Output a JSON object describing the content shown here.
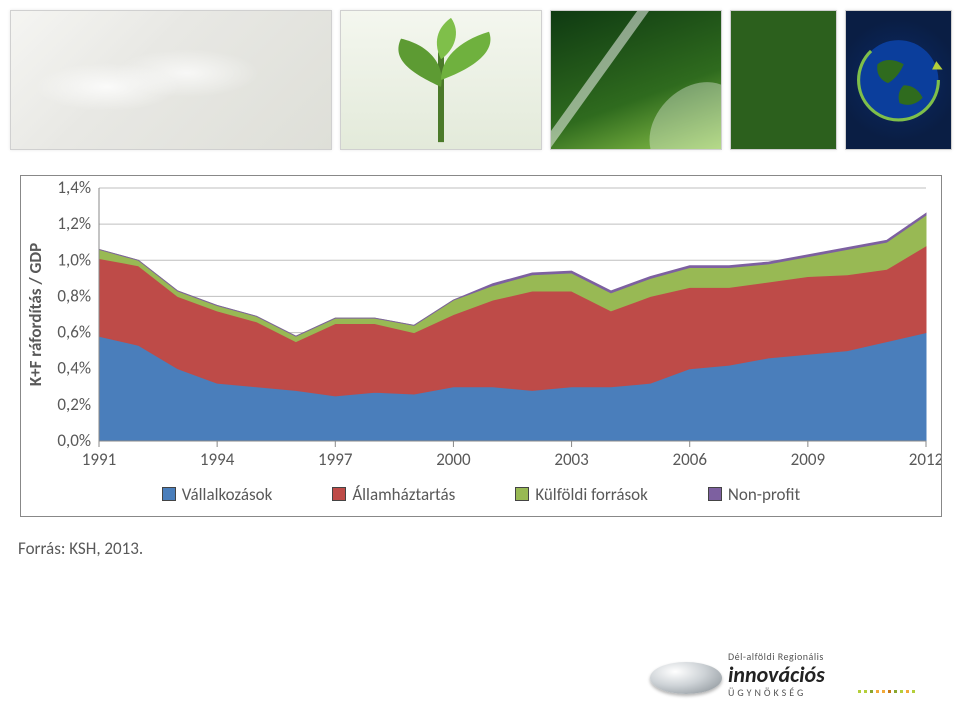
{
  "header": {
    "panels": [
      "dna-helix",
      "plant-sprout",
      "leaf-macro",
      "green-square",
      "earth-globe"
    ]
  },
  "chart": {
    "type": "stacked-area",
    "y_axis_label": "K+F ráfordítás / GDP",
    "y_ticks": [
      "0,0%",
      "0,2%",
      "0,4%",
      "0,6%",
      "0,8%",
      "1,0%",
      "1,2%",
      "1,4%"
    ],
    "y_tick_values": [
      0.0,
      0.2,
      0.4,
      0.6,
      0.8,
      1.0,
      1.2,
      1.4
    ],
    "ylim": [
      0.0,
      1.4
    ],
    "x_tick_labels": [
      "1991",
      "1994",
      "1997",
      "2000",
      "2003",
      "2006",
      "2009",
      "2012"
    ],
    "x_tick_years": [
      1991,
      1994,
      1997,
      2000,
      2003,
      2006,
      2009,
      2012
    ],
    "years": [
      1991,
      1992,
      1993,
      1994,
      1995,
      1996,
      1997,
      1998,
      1999,
      2000,
      2001,
      2002,
      2003,
      2004,
      2005,
      2006,
      2007,
      2008,
      2009,
      2010,
      2011,
      2012
    ],
    "series": [
      {
        "key": "vallalkozasok",
        "label": "Vállalkozások",
        "color": "#4a7ebb",
        "values": [
          0.58,
          0.53,
          0.4,
          0.32,
          0.3,
          0.28,
          0.25,
          0.27,
          0.26,
          0.3,
          0.3,
          0.28,
          0.3,
          0.3,
          0.32,
          0.4,
          0.42,
          0.46,
          0.48,
          0.5,
          0.55,
          0.6
        ]
      },
      {
        "key": "allamhaztartas",
        "label": "Államháztartás",
        "color": "#be4b48",
        "values": [
          0.43,
          0.44,
          0.4,
          0.4,
          0.36,
          0.27,
          0.4,
          0.38,
          0.34,
          0.4,
          0.48,
          0.55,
          0.53,
          0.42,
          0.48,
          0.45,
          0.43,
          0.42,
          0.43,
          0.42,
          0.4,
          0.48
        ]
      },
      {
        "key": "kulfoldi",
        "label": "Külföldi források",
        "color": "#98b954",
        "values": [
          0.05,
          0.03,
          0.03,
          0.03,
          0.03,
          0.03,
          0.03,
          0.03,
          0.04,
          0.08,
          0.08,
          0.09,
          0.1,
          0.1,
          0.1,
          0.11,
          0.11,
          0.1,
          0.11,
          0.14,
          0.15,
          0.17
        ]
      },
      {
        "key": "nonprofit",
        "label": "Non-profit",
        "color": "#7d60a0",
        "values": [
          0.0,
          0.0,
          0.0,
          0.0,
          0.0,
          0.0,
          0.0,
          0.0,
          0.0,
          0.0,
          0.01,
          0.01,
          0.01,
          0.01,
          0.01,
          0.01,
          0.01,
          0.01,
          0.01,
          0.01,
          0.01,
          0.01
        ]
      }
    ],
    "background_color": "#ffffff",
    "grid_color": "#bfbfbf",
    "axis_color": "#888888",
    "tick_fontsize": 17,
    "label_fontsize": 17
  },
  "legend": {
    "items": [
      {
        "label": "Vállalkozások",
        "color": "#4a7ebb"
      },
      {
        "label": "Államháztartás",
        "color": "#be4b48"
      },
      {
        "label": "Külföldi források",
        "color": "#98b954"
      },
      {
        "label": "Non-profit",
        "color": "#7d60a0"
      }
    ]
  },
  "source_text": "Forrás: KSH, 2013.",
  "footer": {
    "line1": "Dél-alföldi Regionális",
    "line2": "innovációs",
    "line3": "ÜGYNÖKSÉG",
    "dot_colors": [
      "#b4cf3a",
      "#b4cf3a",
      "#8aa62e",
      "#f2a939",
      "#f2a939",
      "#c77818",
      "#8aa62e",
      "#b4cf3a",
      "#f2a939",
      "#b4cf3a"
    ]
  }
}
